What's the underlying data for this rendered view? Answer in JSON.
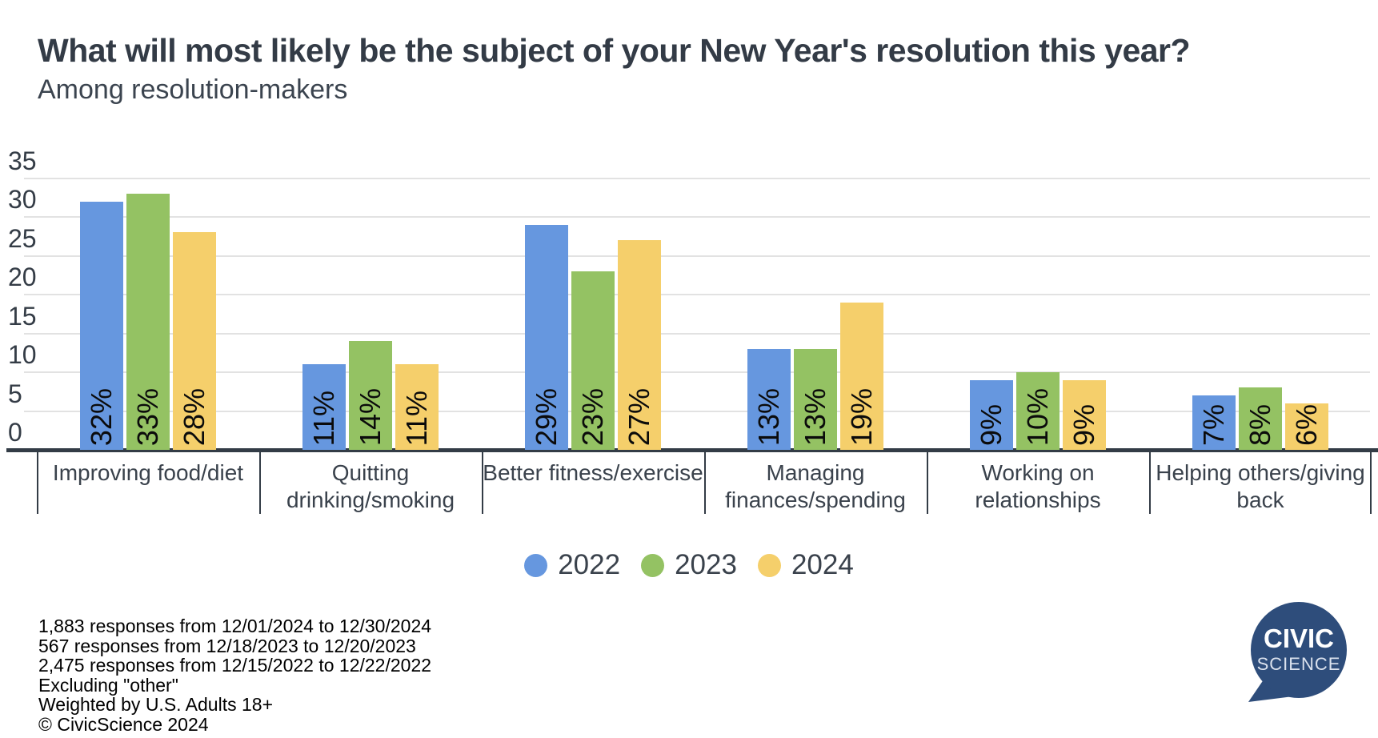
{
  "header": {
    "title": "What will most likely be the subject of your New Year's resolution this year?",
    "subtitle": "Among resolution-makers"
  },
  "chart_data": {
    "type": "bar",
    "categories": [
      "Improving food/diet",
      "Quitting drinking/smoking",
      "Better fitness/exercise",
      "Managing finances/spending",
      "Working on relationships",
      "Helping others/giving back"
    ],
    "series": [
      {
        "name": "2022",
        "color": "#6697DF",
        "values": [
          32,
          11,
          29,
          13,
          9,
          7
        ]
      },
      {
        "name": "2023",
        "color": "#94C263",
        "values": [
          33,
          14,
          23,
          13,
          10,
          8
        ]
      },
      {
        "name": "2024",
        "color": "#F5CF6B",
        "values": [
          28,
          11,
          27,
          19,
          9,
          6
        ]
      }
    ],
    "value_suffix": "%",
    "xlabel": "",
    "ylabel": "",
    "ylim": [
      0,
      35
    ],
    "ytick_step": 5,
    "yticks": [
      0,
      5,
      10,
      15,
      20,
      25,
      30,
      35
    ],
    "grid": true,
    "value_labels": "rotated-90-inside-bar-bottom",
    "legend_position": "bottom-center"
  },
  "footer": {
    "lines": [
      "1,883 responses from 12/01/2024 to 12/30/2024",
      "567 responses from 12/18/2023 to 12/20/2023",
      "2,475 responses from 12/15/2022 to 12/22/2022",
      "Excluding \"other\"",
      "Weighted by U.S. Adults 18+",
      "© CivicScience 2024"
    ]
  },
  "logo": {
    "line1": "CIVIC",
    "line2": "SCIENCE",
    "color": "#2E4D7B"
  },
  "colors": {
    "title_text": "#333B46",
    "axis_text": "#3A424C",
    "gridline": "#E2E2E2",
    "baseline": "#333C46"
  }
}
